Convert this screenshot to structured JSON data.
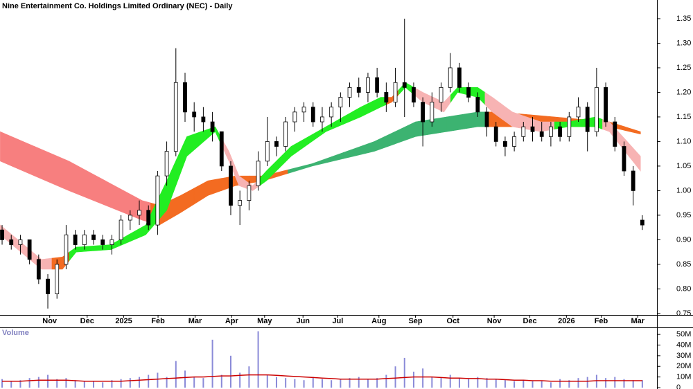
{
  "chart_data": [
    {
      "type": "candlestick",
      "title": "Nine Entertainment Co. Holdings Limited Ordinary (NEC) - Daily",
      "open": [
        0.92,
        0.9,
        0.89,
        0.9,
        0.86,
        0.82,
        0.79,
        0.85,
        0.91,
        0.89,
        0.91,
        0.9,
        0.89,
        0.9,
        0.94,
        0.95,
        0.96,
        0.93,
        1.03,
        1.08,
        1.22,
        1.16,
        1.15,
        1.14,
        1.12,
        1.05,
        0.97,
        0.98,
        1.01,
        1.06,
        1.1,
        1.09,
        1.14,
        1.16,
        1.17,
        1.14,
        1.15,
        1.17,
        1.19,
        1.21,
        1.2,
        1.23,
        1.2,
        1.18,
        1.22,
        1.21,
        1.18,
        1.14,
        1.18,
        1.21,
        1.25,
        1.21,
        1.19,
        1.16,
        1.13,
        1.1,
        1.09,
        1.11,
        1.13,
        1.12,
        1.11,
        1.13,
        1.11,
        1.15,
        1.17,
        1.12,
        1.21,
        1.14,
        1.09,
        1.04,
        0.94
      ],
      "high": [
        0.93,
        0.91,
        0.91,
        0.9,
        0.87,
        0.83,
        0.86,
        0.93,
        0.92,
        0.92,
        0.92,
        0.91,
        0.91,
        0.95,
        0.96,
        0.98,
        0.97,
        1.04,
        1.1,
        1.29,
        1.24,
        1.18,
        1.17,
        1.16,
        1.12,
        1.06,
        1.0,
        1.02,
        1.08,
        1.15,
        1.11,
        1.15,
        1.17,
        1.18,
        1.18,
        1.17,
        1.18,
        1.2,
        1.22,
        1.23,
        1.24,
        1.25,
        1.22,
        1.25,
        1.35,
        1.22,
        1.19,
        1.2,
        1.22,
        1.28,
        1.26,
        1.22,
        1.2,
        1.17,
        1.14,
        1.11,
        1.12,
        1.14,
        1.15,
        1.14,
        1.14,
        1.14,
        1.16,
        1.19,
        1.18,
        1.25,
        1.22,
        1.15,
        1.1,
        1.05,
        0.95
      ],
      "low": [
        0.89,
        0.88,
        0.87,
        0.85,
        0.81,
        0.76,
        0.78,
        0.84,
        0.88,
        0.88,
        0.89,
        0.88,
        0.87,
        0.89,
        0.92,
        0.93,
        0.92,
        0.91,
        1.01,
        1.07,
        1.14,
        1.12,
        1.12,
        1.1,
        1.04,
        0.95,
        0.93,
        0.96,
        1.0,
        1.05,
        1.07,
        1.08,
        1.12,
        1.14,
        1.13,
        1.12,
        1.13,
        1.14,
        1.17,
        1.19,
        1.18,
        1.19,
        1.16,
        1.17,
        1.15,
        1.17,
        1.09,
        1.13,
        1.16,
        1.2,
        1.2,
        1.18,
        1.15,
        1.11,
        1.09,
        1.07,
        1.08,
        1.1,
        1.1,
        1.1,
        1.09,
        1.1,
        1.1,
        1.14,
        1.08,
        1.11,
        1.13,
        1.08,
        1.03,
        0.97,
        0.92
      ],
      "close": [
        0.9,
        0.89,
        0.9,
        0.86,
        0.82,
        0.79,
        0.85,
        0.91,
        0.89,
        0.91,
        0.9,
        0.89,
        0.9,
        0.94,
        0.95,
        0.96,
        0.93,
        1.03,
        1.08,
        1.22,
        1.16,
        1.15,
        1.14,
        1.12,
        1.05,
        0.97,
        0.98,
        1.01,
        1.06,
        1.1,
        1.09,
        1.14,
        1.16,
        1.17,
        1.14,
        1.15,
        1.17,
        1.19,
        1.21,
        1.2,
        1.23,
        1.2,
        1.18,
        1.22,
        1.21,
        1.18,
        1.14,
        1.18,
        1.21,
        1.25,
        1.21,
        1.19,
        1.16,
        1.13,
        1.1,
        1.09,
        1.11,
        1.13,
        1.12,
        1.11,
        1.13,
        1.11,
        1.15,
        1.17,
        1.12,
        1.21,
        1.14,
        1.09,
        1.04,
        1.0,
        0.93
      ],
      "up_color": "#ffffff",
      "down_color": "#000000",
      "bands": [
        {
          "x": [
            -0.2,
            7.3,
            15.3,
            17.2,
            19.5,
            22.5,
            25.5,
            28.6,
            33.9,
            40.7,
            45.2,
            52,
            54.3,
            60.4,
            66.4,
            69.8
          ],
          "upper": [
            1.12,
            1.06,
            0.98,
            0.97,
            0.99,
            1.02,
            1.03,
            1.03,
            1.055,
            1.1,
            1.14,
            1.16,
            1.16,
            1.15,
            1.14,
            1.12
          ],
          "lower": [
            1.06,
            1.0,
            0.94,
            0.93,
            0.955,
            0.99,
            1.01,
            1.02,
            1.05,
            1.08,
            1.11,
            1.13,
            1.13,
            1.13,
            1.13,
            1.115
          ],
          "colors": [
            "#f77f7f",
            "#f77f7f",
            "#f77f7f",
            "#f36b21",
            "#f36b21",
            "#f36b21",
            "#f36b21",
            "#f36b21",
            "#3cb371",
            "#3cb371",
            "#3cb371",
            "#3cb371",
            "#f36b21",
            "#f36b21",
            "#f36b21",
            "#f36b21"
          ]
        },
        {
          "x": [
            -0.2,
            4.3,
            6.6,
            8.1,
            11.9,
            15.7,
            18,
            20.2,
            23.3,
            24.8,
            25.9,
            27.4,
            28.9,
            31.6,
            35.4,
            39.2,
            41.4,
            42.6,
            44.1,
            46,
            48.3,
            49.8,
            52,
            53.6,
            55.8,
            58.9,
            61.9,
            64.9,
            66.4,
            69.8
          ],
          "upper": [
            0.93,
            0.86,
            0.865,
            0.885,
            0.89,
            0.93,
            1.02,
            1.11,
            1.13,
            1.08,
            1.03,
            1.01,
            1.04,
            1.09,
            1.13,
            1.17,
            1.19,
            1.19,
            1.22,
            1.2,
            1.18,
            1.21,
            1.21,
            1.19,
            1.16,
            1.14,
            1.14,
            1.15,
            1.14,
            1.07
          ],
          "lower": [
            0.91,
            0.84,
            0.84,
            0.875,
            0.88,
            0.91,
            0.96,
            1.07,
            1.12,
            1.06,
            1.01,
            1.0,
            1.02,
            1.07,
            1.12,
            1.15,
            1.17,
            1.18,
            1.21,
            1.18,
            1.16,
            1.2,
            1.19,
            1.16,
            1.13,
            1.12,
            1.13,
            1.13,
            1.12,
            1.04
          ],
          "colors": [
            "#f7b3b3",
            "#f7b3b3",
            "#f36b21",
            "#22ee22",
            "#22ee22",
            "#22ee22",
            "#22ee22",
            "#22ee22",
            "#22ee22",
            "#f7b3b3",
            "#f7b3b3",
            "#f7b3b3",
            "#22ee22",
            "#22ee22",
            "#22ee22",
            "#22ee22",
            "#22ee22",
            "#f36b21",
            "#22ee22",
            "#f7b3b3",
            "#f7b3b3",
            "#22ee22",
            "#22ee22",
            "#f7b3b3",
            "#f7b3b3",
            "#f7b3b3",
            "#22ee22",
            "#22ee22",
            "#f7b3b3",
            "#f7b3b3"
          ]
        }
      ],
      "xlim": [
        -0.23,
        71.6
      ],
      "xticks": [
        {
          "value": 5.2,
          "label": "Nov"
        },
        {
          "value": 9.3,
          "label": "Dec"
        },
        {
          "value": 13.3,
          "label": "2025"
        },
        {
          "value": 17.05,
          "label": "Feb"
        },
        {
          "value": 21.1,
          "label": "Mar"
        },
        {
          "value": 25.1,
          "label": "Apr"
        },
        {
          "value": 28.7,
          "label": "May"
        },
        {
          "value": 32.9,
          "label": "Jun"
        },
        {
          "value": 36.7,
          "label": "Jul"
        },
        {
          "value": 41.2,
          "label": "Aug"
        },
        {
          "value": 45.2,
          "label": "Sep"
        },
        {
          "value": 49.3,
          "label": "Oct"
        },
        {
          "value": 53.8,
          "label": "Nov"
        },
        {
          "value": 57.7,
          "label": "Dec"
        },
        {
          "value": 61.7,
          "label": "2026"
        },
        {
          "value": 65.5,
          "label": "Feb"
        },
        {
          "value": 69.5,
          "label": "Mar"
        }
      ],
      "ylim": [
        0.747,
        1.388
      ],
      "yticks": [
        0.75,
        {
          "value": 0.8,
          "label": "0.80"
        },
        0.85,
        {
          "value": 0.9,
          "label": "0.90"
        },
        0.95,
        {
          "value": 1.0,
          "label": "1.00"
        },
        1.05,
        {
          "value": 1.1,
          "label": "1.10"
        },
        1.15,
        {
          "value": 1.2,
          "label": "1.20"
        },
        1.25,
        {
          "value": 1.3,
          "label": "1.30"
        },
        1.35
      ]
    },
    {
      "type": "volume",
      "title": "Volume",
      "values": [
        8000000,
        6000000,
        7000000,
        9000000,
        10000000,
        12000000,
        8000000,
        9000000,
        7000000,
        6000000,
        6000000,
        5000000,
        7000000,
        8000000,
        9000000,
        10000000,
        12000000,
        14000000,
        10000000,
        25000000,
        16000000,
        10000000,
        9000000,
        45000000,
        12000000,
        30000000,
        14000000,
        20000000,
        53000000,
        12000000,
        10000000,
        9000000,
        8000000,
        7000000,
        10000000,
        8000000,
        7000000,
        8000000,
        9000000,
        10000000,
        8000000,
        9000000,
        12000000,
        20000000,
        28000000,
        15000000,
        18000000,
        10000000,
        9000000,
        12000000,
        9000000,
        8000000,
        10000000,
        9000000,
        8000000,
        7000000,
        6000000,
        7000000,
        6000000,
        6000000,
        5000000,
        8000000,
        7000000,
        9000000,
        10000000,
        12000000,
        9000000,
        10000000,
        8000000,
        7000000,
        7000000
      ],
      "color": "#8a8ad8",
      "ma": {
        "values": [
          6000000,
          6000000,
          6000000,
          6500000,
          7000000,
          7000000,
          7000000,
          7000000,
          6500000,
          6000000,
          6000000,
          6000000,
          6000000,
          6000000,
          6500000,
          7000000,
          7500000,
          8000000,
          8500000,
          9000000,
          9500000,
          10000000,
          10000000,
          10500000,
          11000000,
          11000000,
          11500000,
          12000000,
          12000000,
          12000000,
          11500000,
          11000000,
          10500000,
          10000000,
          9500000,
          9000000,
          8500000,
          8000000,
          8000000,
          8000000,
          8000000,
          8000000,
          8500000,
          9000000,
          9500000,
          10000000,
          10000000,
          10000000,
          9500000,
          9000000,
          9000000,
          8500000,
          8500000,
          8000000,
          8000000,
          7500000,
          7000000,
          7000000,
          6500000,
          6500000,
          6000000,
          6000000,
          6000000,
          6000000,
          6000000,
          6500000,
          6500000,
          6500000,
          6500000,
          6500000,
          6500000
        ],
        "color": "#cc0000"
      },
      "xlim": [
        -0.23,
        71.6
      ],
      "ylim": [
        0,
        55300000
      ],
      "yticks": [
        0,
        {
          "value": 10000000,
          "label": "10M"
        },
        {
          "value": 20000000,
          "label": "20M"
        },
        {
          "value": 30000000,
          "label": "30M"
        },
        {
          "value": 40000000,
          "label": "40M"
        },
        {
          "value": 50000000,
          "label": "50M"
        }
      ]
    }
  ]
}
